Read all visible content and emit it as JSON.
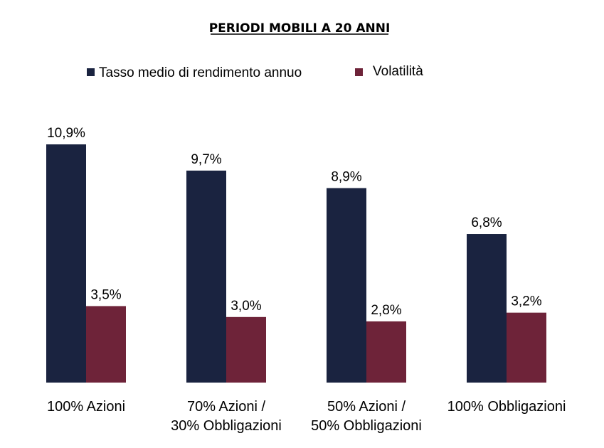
{
  "chart_data": {
    "type": "bar",
    "title": "PERIODI MOBILI A 20 ANNI",
    "xlabel": "",
    "ylabel": "",
    "grid": false,
    "legend_position": "top",
    "categories": [
      [
        "100% Azioni"
      ],
      [
        "70% Azioni /",
        "30% Obbligazioni"
      ],
      [
        "50% Azioni /",
        "50% Obbligazioni"
      ],
      [
        "100% Obbligazioni"
      ]
    ],
    "series": [
      {
        "name": "Tasso medio di rendimento annuo",
        "color": "#1a2340",
        "values": [
          10.9,
          9.7,
          8.9,
          6.8
        ],
        "labels": [
          "10,9%",
          "9,7%",
          "8,9%",
          "6,8%"
        ]
      },
      {
        "name": "Volatilità",
        "color": "#6e2339",
        "values": [
          3.5,
          3.0,
          2.8,
          3.2
        ],
        "labels": [
          "3,5%",
          "3,0%",
          "2,8%",
          "3,2%"
        ]
      }
    ],
    "ylim": [
      0,
      12.3
    ]
  }
}
